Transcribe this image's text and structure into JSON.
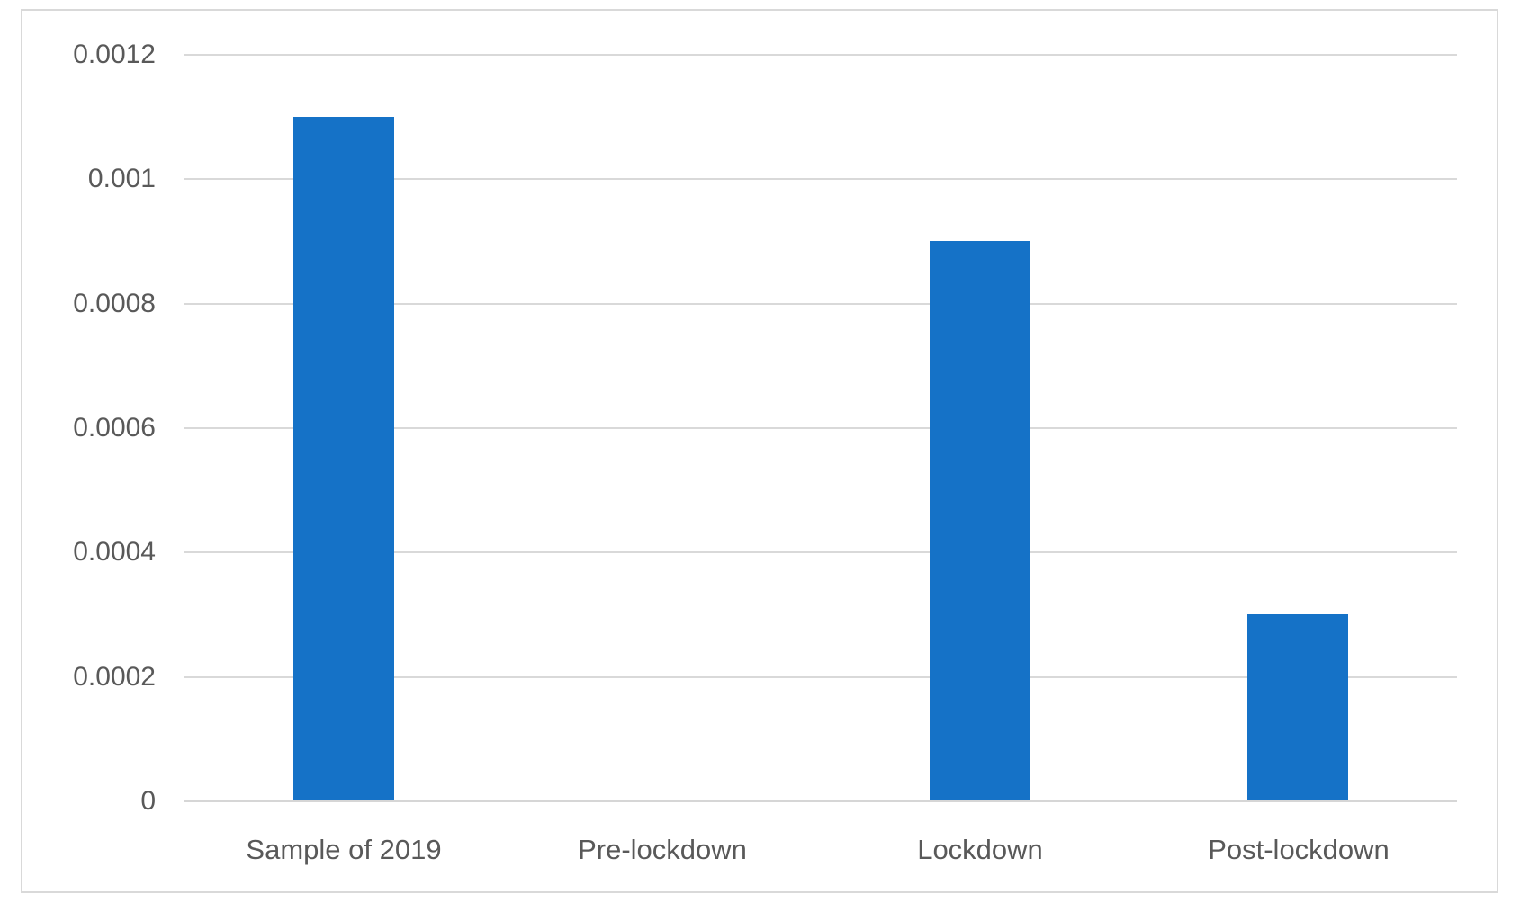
{
  "chart_data": {
    "type": "bar",
    "categories": [
      "Sample of 2019",
      "Pre-lockdown",
      "Lockdown",
      "Post-lockdown"
    ],
    "values": [
      0.0011,
      0,
      0.0009,
      0.0003
    ],
    "title": "",
    "xlabel": "",
    "ylabel": "",
    "ylim": [
      0,
      0.0012
    ],
    "ytick_interval": 0.0002,
    "ytick_labels": [
      "0",
      "0.0002",
      "0.0004",
      "0.0006",
      "0.0008",
      "0.001",
      "0.0012"
    ],
    "grid": true,
    "legend": false,
    "colors": {
      "bar": "#1572c7",
      "gridline": "#d9d9d9",
      "axis_line": "#d6d6d6",
      "tick_label": "#595959",
      "frame_border": "#d9d9d9",
      "background": "#ffffff"
    }
  }
}
